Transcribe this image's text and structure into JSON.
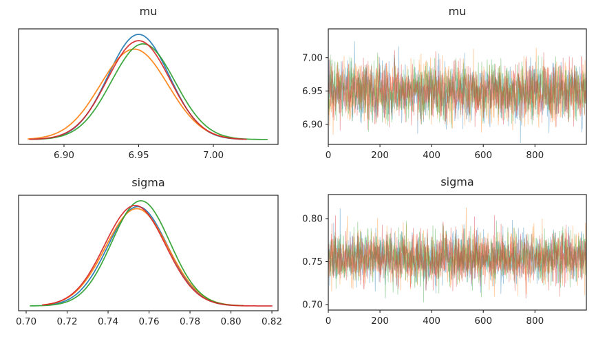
{
  "figure": {
    "background": "#ffffff",
    "text_color": "#262626",
    "spine_color": "#262626",
    "chain_colors": [
      "#1f77b4",
      "#ff7f0e",
      "#2ca02c",
      "#d62728"
    ],
    "chain_count": 4,
    "kde_alpha": 0.9,
    "trace_alpha": 0.4
  },
  "chart_data": [
    {
      "type": "line",
      "role": "kde",
      "title": "mu",
      "xlabel": "",
      "ylabel": "",
      "grid": false,
      "legend": "none",
      "xlim": [
        6.8696,
        7.0433
      ],
      "xticks": [
        6.9,
        6.95,
        7.0
      ],
      "xtick_labels": [
        "6.90",
        "6.95",
        "7.00"
      ],
      "series": [
        {
          "name": "chain 0",
          "color_index": 0,
          "mean": 6.95,
          "sd": 0.0205,
          "peak": 1.0,
          "xmin": 6.878,
          "xmax": 7.02
        },
        {
          "name": "chain 1",
          "color_index": 1,
          "mean": 6.947,
          "sd": 0.0226,
          "peak": 0.86,
          "xmin": 6.876,
          "xmax": 7.016
        },
        {
          "name": "chain 2",
          "color_index": 2,
          "mean": 6.953,
          "sd": 0.0213,
          "peak": 0.91,
          "xmin": 6.88,
          "xmax": 7.036
        },
        {
          "name": "chain 3",
          "color_index": 3,
          "mean": 6.95,
          "sd": 0.021,
          "peak": 0.94,
          "xmin": 6.877,
          "xmax": 7.022
        }
      ]
    },
    {
      "type": "line",
      "role": "trace",
      "title": "mu",
      "xlabel": "",
      "ylabel": "",
      "grid": false,
      "legend": "none",
      "n_samples": 1000,
      "xlim": [
        0,
        999
      ],
      "xticks": [
        0,
        200,
        400,
        600,
        800
      ],
      "xtick_labels": [
        "0",
        "200",
        "400",
        "600",
        "800"
      ],
      "ylim": [
        6.87,
        7.043
      ],
      "yticks": [
        6.9,
        6.95,
        7.0
      ],
      "ytick_labels": [
        "6.90",
        "6.95",
        "7.00"
      ],
      "series": [
        {
          "name": "chain 0",
          "color_index": 0,
          "mean": 6.95,
          "sd": 0.021,
          "seed": 101
        },
        {
          "name": "chain 1",
          "color_index": 1,
          "mean": 6.949,
          "sd": 0.022,
          "seed": 202
        },
        {
          "name": "chain 2",
          "color_index": 2,
          "mean": 6.951,
          "sd": 0.021,
          "seed": 303
        },
        {
          "name": "chain 3",
          "color_index": 3,
          "mean": 6.95,
          "sd": 0.021,
          "seed": 404
        }
      ]
    },
    {
      "type": "line",
      "role": "kde",
      "title": "sigma",
      "xlabel": "",
      "ylabel": "",
      "grid": false,
      "legend": "none",
      "xlim": [
        0.6963,
        0.823
      ],
      "xticks": [
        0.7,
        0.72,
        0.74,
        0.76,
        0.78,
        0.8,
        0.82
      ],
      "xtick_labels": [
        "0.70",
        "0.72",
        "0.74",
        "0.76",
        "0.78",
        "0.80",
        "0.82"
      ],
      "series": [
        {
          "name": "chain 0",
          "color_index": 0,
          "mean": 0.7545,
          "sd": 0.0145,
          "peak": 0.945,
          "xmin": 0.71,
          "xmax": 0.801
        },
        {
          "name": "chain 1",
          "color_index": 1,
          "mean": 0.754,
          "sd": 0.0152,
          "peak": 0.925,
          "xmin": 0.709,
          "xmax": 0.805
        },
        {
          "name": "chain 2",
          "color_index": 2,
          "mean": 0.756,
          "sd": 0.0142,
          "peak": 1.0,
          "xmin": 0.702,
          "xmax": 0.806
        },
        {
          "name": "chain 3",
          "color_index": 3,
          "mean": 0.7532,
          "sd": 0.0149,
          "peak": 0.955,
          "xmin": 0.708,
          "xmax": 0.82
        }
      ]
    },
    {
      "type": "line",
      "role": "trace",
      "title": "sigma",
      "xlabel": "",
      "ylabel": "",
      "grid": false,
      "legend": "none",
      "n_samples": 1000,
      "xlim": [
        0,
        999
      ],
      "xticks": [
        0,
        200,
        400,
        600,
        800
      ],
      "xtick_labels": [
        "0",
        "200",
        "400",
        "600",
        "800"
      ],
      "ylim": [
        0.6936,
        0.828
      ],
      "yticks": [
        0.7,
        0.75,
        0.8
      ],
      "ytick_labels": [
        "0.70",
        "0.75",
        "0.80"
      ],
      "series": [
        {
          "name": "chain 0",
          "color_index": 0,
          "mean": 0.7545,
          "sd": 0.0148,
          "seed": 505
        },
        {
          "name": "chain 1",
          "color_index": 1,
          "mean": 0.7545,
          "sd": 0.015,
          "seed": 606
        },
        {
          "name": "chain 2",
          "color_index": 2,
          "mean": 0.7555,
          "sd": 0.0148,
          "seed": 707
        },
        {
          "name": "chain 3",
          "color_index": 3,
          "mean": 0.754,
          "sd": 0.015,
          "seed": 808
        }
      ]
    }
  ]
}
